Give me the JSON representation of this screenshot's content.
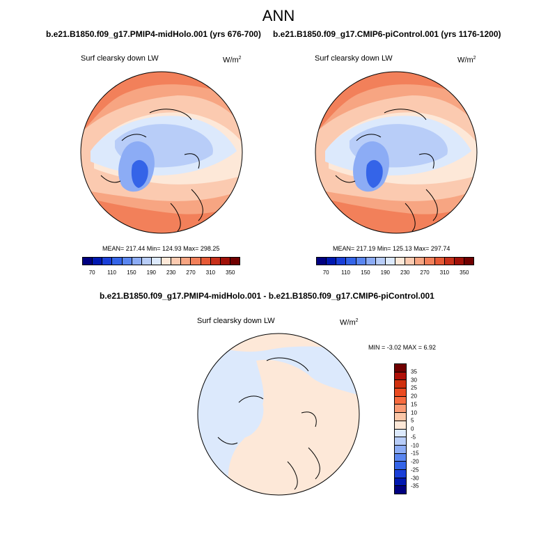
{
  "title": "ANN",
  "panels": [
    {
      "case": "b.e21.B1850.f09_g17.PMIP4-midHolo.001 (yrs 676-700)",
      "variable": "Surf clearsky down LW",
      "units_base": "W/m",
      "units_exp": "2",
      "stats": "MEAN= 217.44  Min= 124.93  Max= 298.25"
    },
    {
      "case": "b.e21.B1850.f09_g17.CMIP6-piControl.001 (yrs 1176-1200)",
      "variable": "Surf clearsky down LW",
      "units_base": "W/m",
      "units_exp": "2",
      "stats": "MEAN= 217.19  Min= 125.13  Max= 297.74"
    }
  ],
  "diff": {
    "case": "b.e21.B1850.f09_g17.PMIP4-midHolo.001 - b.e21.B1850.f09_g17.CMIP6-piControl.001",
    "variable": "Surf clearsky down LW",
    "units_base": "W/m",
    "units_exp": "2",
    "stats": "MIN =  -3.02 MAX =   6.92"
  },
  "colorbar_main": {
    "colors": [
      "#000080",
      "#0018b0",
      "#1a3fd8",
      "#3464e8",
      "#5a86f0",
      "#8cacf5",
      "#b8cdf8",
      "#dce9fc",
      "#fde8d8",
      "#fbcab0",
      "#f7a582",
      "#f2805a",
      "#e65a36",
      "#c8301a",
      "#a01008",
      "#700000"
    ],
    "labels": [
      "70",
      "110",
      "150",
      "190",
      "230",
      "270",
      "310",
      "350"
    ]
  },
  "colorbar_diff": {
    "colors": [
      "#700000",
      "#b01008",
      "#d0300e",
      "#ea4a20",
      "#f76a3e",
      "#f99a74",
      "#fbc7a8",
      "#fde8d8",
      "#dce9fc",
      "#b8cdf8",
      "#8cacf5",
      "#5a86f0",
      "#3464e8",
      "#1a3fd8",
      "#0018b0",
      "#000080"
    ],
    "labels": [
      "35",
      "30",
      "25",
      "20",
      "15",
      "10",
      "5",
      "0",
      "-5",
      "-10",
      "-15",
      "-20",
      "-25",
      "-30",
      "-35"
    ]
  },
  "map_colors": {
    "warm_outer": "#f2805a",
    "warm_mid": "#f7a582",
    "warm_light": "#fbcab0",
    "neutral_warm": "#fde8d8",
    "neutral_cool": "#dce9fc",
    "cool_light": "#b8cdf8",
    "cool_mid": "#8cacf5",
    "cool_deep": "#5a86f0",
    "cool_darker": "#3464e8",
    "diff_pos": "#fde8d8",
    "diff_neg": "#dce9fc"
  }
}
